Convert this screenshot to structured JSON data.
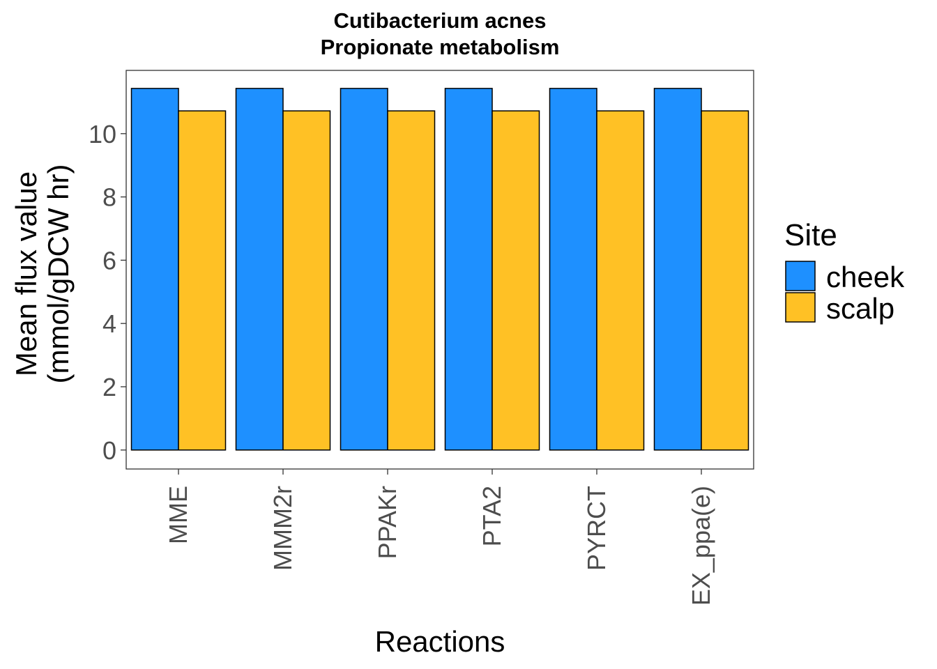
{
  "chart_data": {
    "type": "bar",
    "title": "Cutibacterium acnes",
    "subtitle": "Propionate metabolism",
    "xlabel": "Reactions",
    "ylabel_line1": "Mean flux value",
    "ylabel_line2": "(mmol/gDCW hr)",
    "categories": [
      "MME",
      "MMM2r",
      "PPAKr",
      "PTA2",
      "PYRCT",
      "EX_ppa(e)"
    ],
    "series": [
      {
        "name": "cheek",
        "color": "#1E90FF",
        "values": [
          11.43,
          11.43,
          11.43,
          11.43,
          11.43,
          11.43
        ]
      },
      {
        "name": "scalp",
        "color": "#FFC125",
        "values": [
          10.72,
          10.72,
          10.72,
          10.72,
          10.72,
          10.72
        ]
      }
    ],
    "ylim": [
      -0.6,
      12.0
    ],
    "yticks": [
      0,
      2,
      4,
      6,
      8,
      10
    ],
    "legend": {
      "title": "Site",
      "placement": "right"
    },
    "grid": false
  }
}
